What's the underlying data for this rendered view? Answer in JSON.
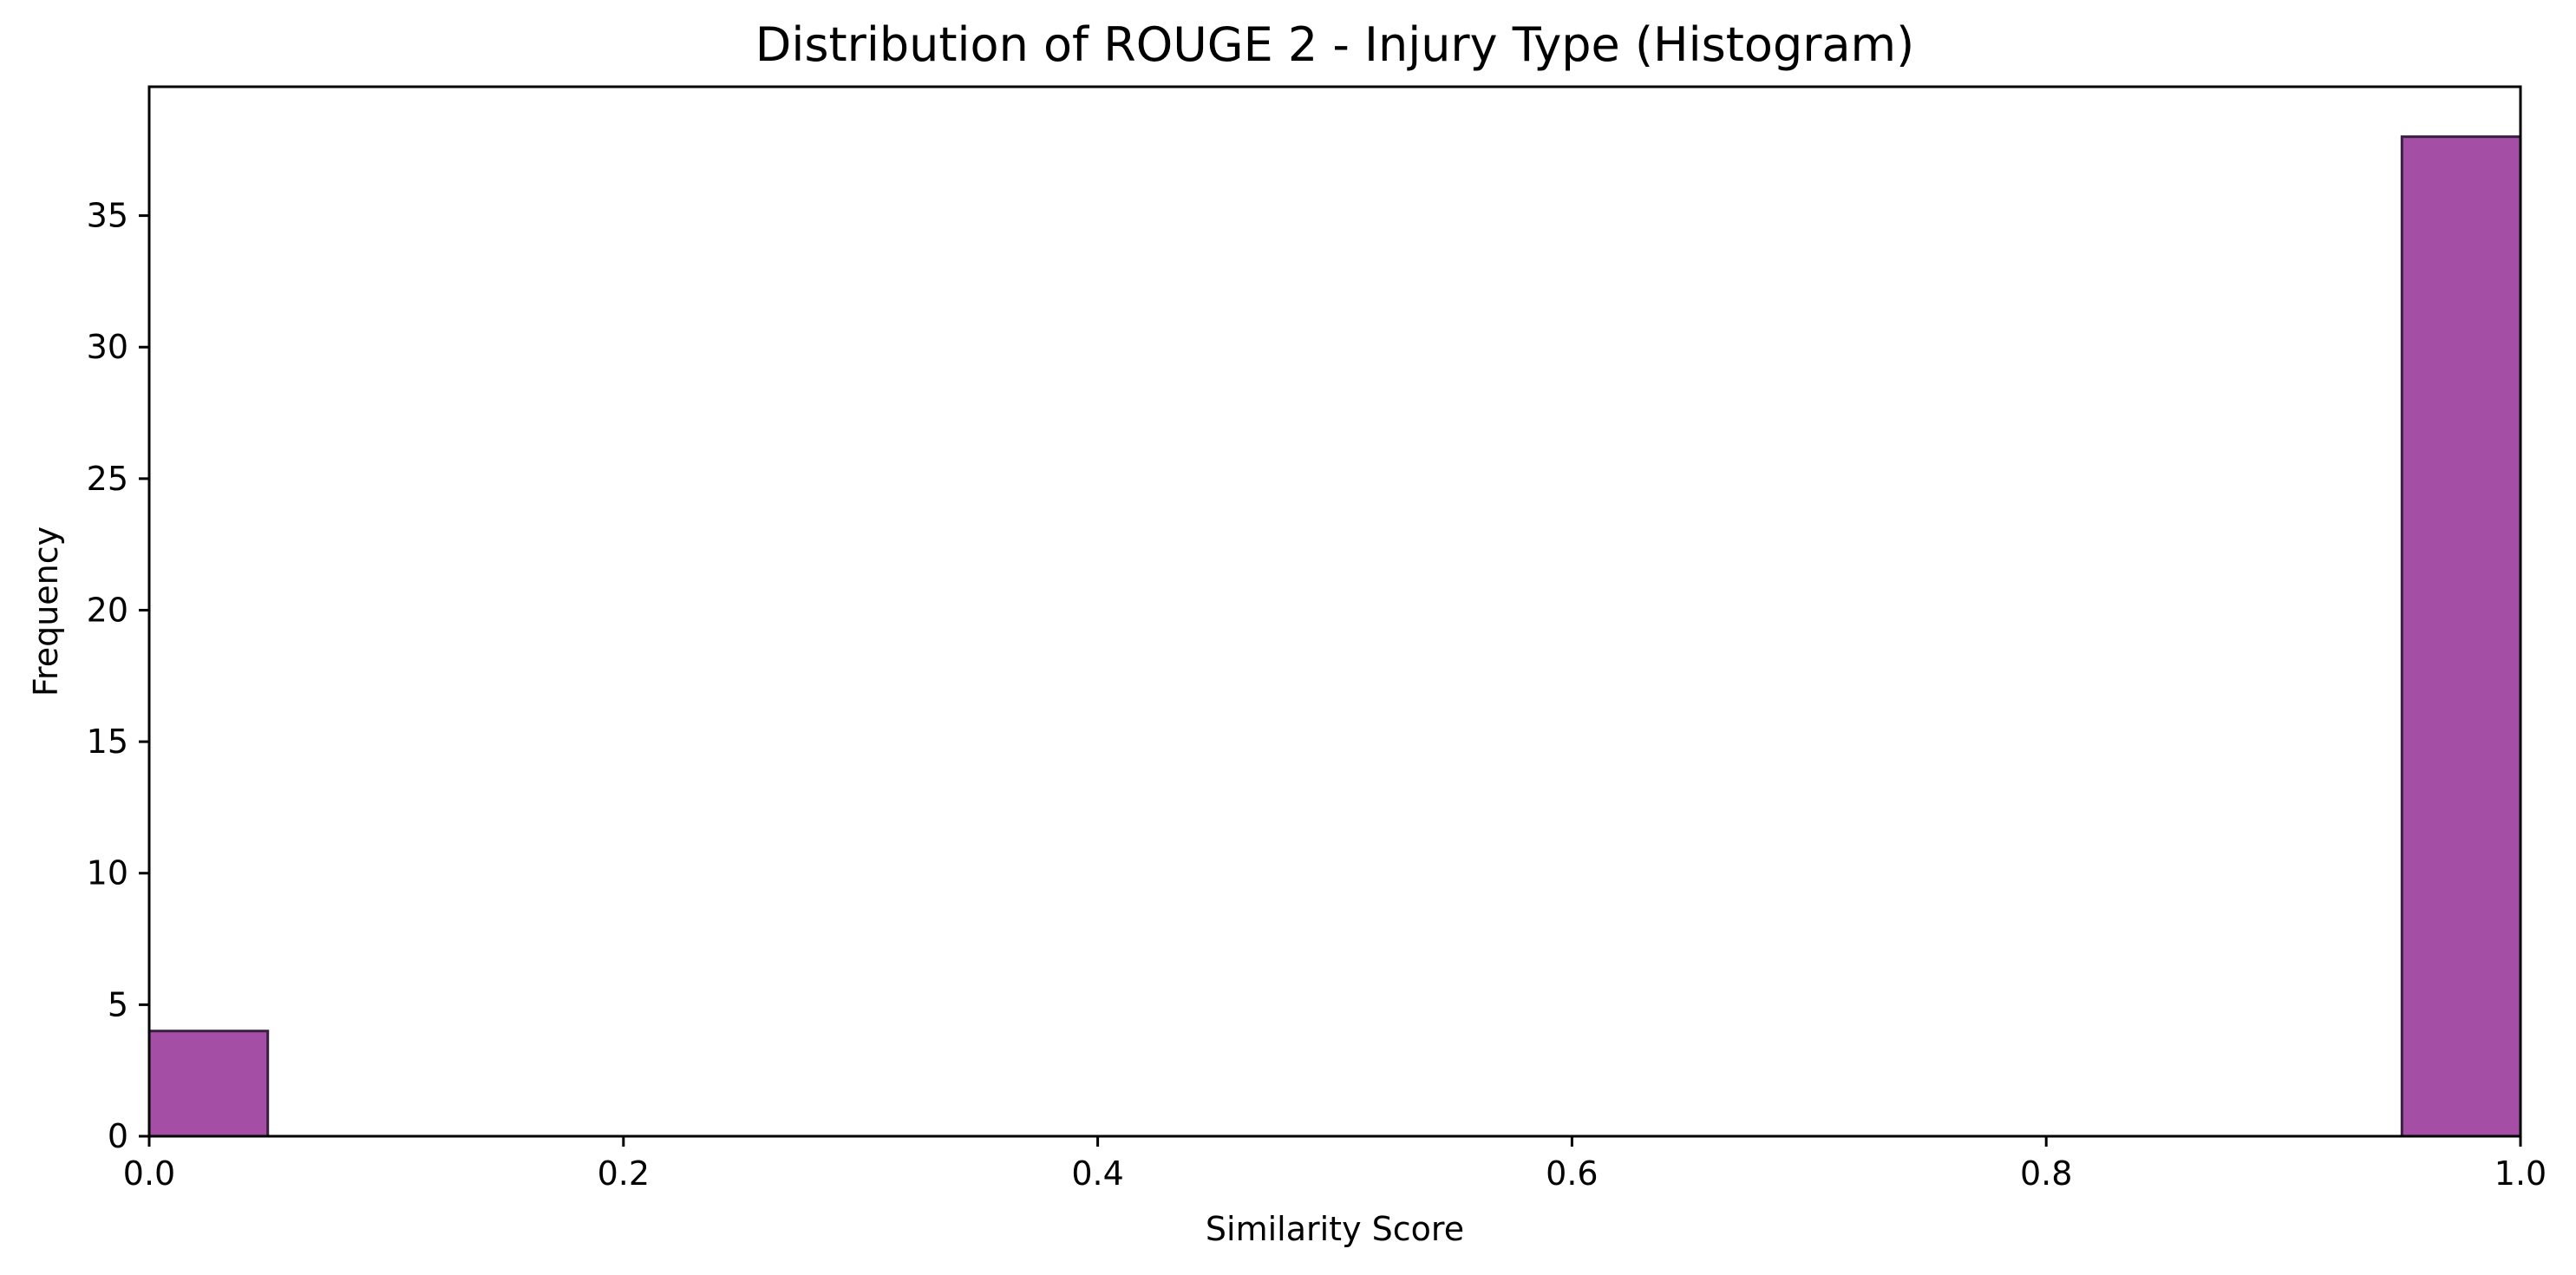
{
  "chart_data": {
    "type": "bar",
    "title": "Distribution of ROUGE 2 - Injury Type (Histogram)",
    "xlabel": "Similarity Score",
    "ylabel": "Frequency",
    "xlim": [
      0.0,
      1.0
    ],
    "ylim": [
      0,
      39.9
    ],
    "xticks": [
      "0.0",
      "0.2",
      "0.4",
      "0.6",
      "0.8",
      "1.0"
    ],
    "xtick_values": [
      0.0,
      0.2,
      0.4,
      0.6,
      0.8,
      1.0
    ],
    "yticks": [
      "0",
      "5",
      "10",
      "15",
      "20",
      "25",
      "30",
      "35"
    ],
    "ytick_values": [
      0,
      5,
      10,
      15,
      20,
      25,
      30,
      35
    ],
    "bins": [
      {
        "x0": 0.0,
        "x1": 0.05,
        "value": 4
      },
      {
        "x0": 0.95,
        "x1": 1.0,
        "value": 38
      }
    ],
    "bar_color": "#a54ea5",
    "edge_color": "#3a2040",
    "grid": false,
    "legend": "none"
  }
}
